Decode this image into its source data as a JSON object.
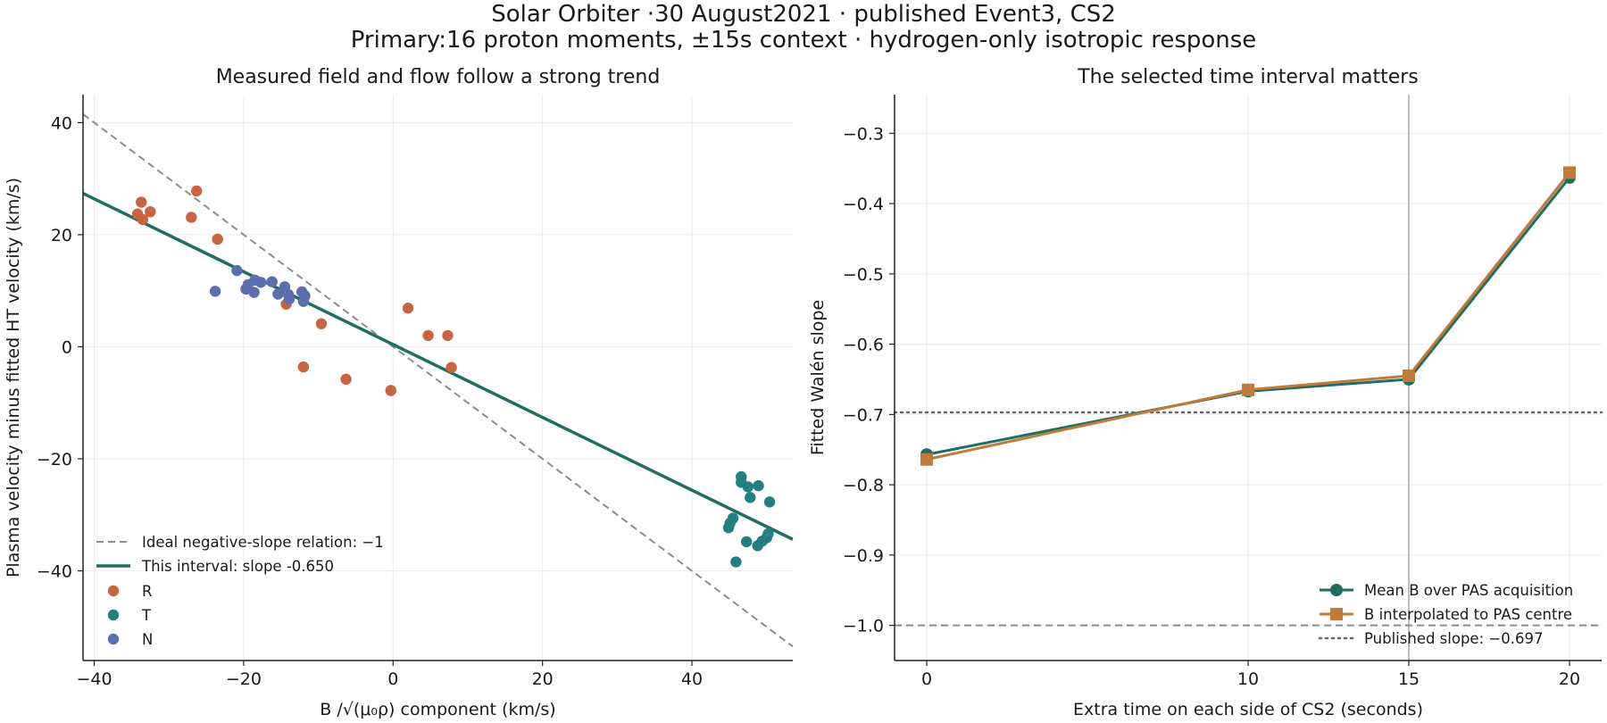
{
  "figure": {
    "title_line1": "Solar Orbiter ·30 August2021 · published Event3, CS2",
    "title_line2": "Primary:16 proton moments, ±15s context · hydrogen-only isotropic response"
  },
  "colors": {
    "R": "#c8643f",
    "T": "#237f80",
    "N": "#5b6eae",
    "fit_line": "#1f6e61",
    "ideal_line": "#8c8c8c",
    "mean_b": "#1f6e61",
    "interp_b": "#c07a3a",
    "published": "#666666",
    "grid": "#ebebeb"
  },
  "chart_data": [
    {
      "type": "scatter",
      "title": "Measured field and flow follow a strong trend",
      "xlabel": "B /√(μ₀ρ) component (km/s)",
      "ylabel": "Plasma velocity minus fitted HT velocity (km/s)",
      "xlim": [
        -41.5,
        53.5
      ],
      "ylim": [
        -56,
        45
      ],
      "xticks": [
        -40,
        -20,
        0,
        20,
        40
      ],
      "yticks": [
        -40,
        -20,
        0,
        20,
        40
      ],
      "grid": true,
      "legend_position": "lower-left",
      "lines": [
        {
          "name": "Ideal negative-slope relation: −1",
          "slope": -1,
          "intercept": 0,
          "style": "dashed",
          "color_key": "ideal_line"
        },
        {
          "name": "This interval: slope -0.650",
          "slope": -0.65,
          "intercept": 0.4,
          "style": "solid",
          "color_key": "fit_line"
        }
      ],
      "series": [
        {
          "name": "R",
          "color_key": "R",
          "points": [
            [
              -34.2,
              23.7
            ],
            [
              -33.7,
              25.8
            ],
            [
              -33.5,
              22.7
            ],
            [
              -32.5,
              24.1
            ],
            [
              -26.3,
              27.8
            ],
            [
              -27.0,
              23.1
            ],
            [
              -23.5,
              19.2
            ],
            [
              -14.3,
              7.6
            ],
            [
              -9.6,
              4.1
            ],
            [
              -12.0,
              -3.6
            ],
            [
              -6.3,
              -5.8
            ],
            [
              -0.3,
              -7.8
            ],
            [
              2.0,
              6.9
            ],
            [
              4.7,
              2.0
            ],
            [
              7.3,
              2.0
            ],
            [
              7.8,
              -3.7
            ]
          ]
        },
        {
          "name": "T",
          "color_key": "T",
          "points": [
            [
              46.6,
              -23.2
            ],
            [
              46.6,
              -24.2
            ],
            [
              47.5,
              -25.0
            ],
            [
              48.9,
              -24.8
            ],
            [
              47.8,
              -26.9
            ],
            [
              50.4,
              -27.7
            ],
            [
              45.5,
              -30.6
            ],
            [
              45.1,
              -31.5
            ],
            [
              44.9,
              -32.3
            ],
            [
              50.2,
              -33.4
            ],
            [
              50.0,
              -34.1
            ],
            [
              49.4,
              -34.7
            ],
            [
              47.3,
              -34.8
            ],
            [
              48.8,
              -35.5
            ],
            [
              45.9,
              -38.4
            ]
          ]
        },
        {
          "name": "N",
          "color_key": "N",
          "points": [
            [
              -20.9,
              13.6
            ],
            [
              -19.4,
              11.1
            ],
            [
              -18.5,
              11.9
            ],
            [
              -17.7,
              11.5
            ],
            [
              -16.2,
              11.6
            ],
            [
              -14.5,
              10.7
            ],
            [
              -12.2,
              9.8
            ],
            [
              -19.7,
              10.3
            ],
            [
              -18.6,
              9.7
            ],
            [
              -15.4,
              9.4
            ],
            [
              -14.0,
              9.3
            ],
            [
              -11.8,
              9.1
            ],
            [
              -13.9,
              8.5
            ],
            [
              -12.0,
              8.1
            ],
            [
              -23.8,
              9.9
            ]
          ]
        }
      ]
    },
    {
      "type": "line",
      "title": "The selected time interval matters",
      "xlabel": "Extra time on each side of CS2 (seconds)",
      "ylabel": "Fitted Walén slope",
      "xlim": [
        -1.0,
        21.0
      ],
      "ylim": [
        -1.05,
        -0.245
      ],
      "xticks": [
        0,
        10,
        15,
        20
      ],
      "yticks": [
        -1.0,
        -0.9,
        -0.8,
        -0.7,
        -0.6,
        -0.5,
        -0.4,
        -0.3
      ],
      "grid": true,
      "legend_position": "lower-right",
      "vline_x": 15,
      "reference_lines": [
        {
          "name": "Published slope: −0.697",
          "y": -0.697,
          "style": "dotted",
          "color_key": "published"
        },
        {
          "name": "",
          "y": -1.0,
          "style": "dashed",
          "color_key": "ideal_line"
        }
      ],
      "x": [
        0,
        10,
        15,
        20
      ],
      "series": [
        {
          "name": "Mean B over PAS acquisition",
          "marker": "circle",
          "color_key": "mean_b",
          "values": [
            -0.757,
            -0.667,
            -0.65,
            -0.363
          ]
        },
        {
          "name": "B interpolated to PAS centre",
          "marker": "square",
          "color_key": "interp_b",
          "values": [
            -0.764,
            -0.665,
            -0.645,
            -0.356
          ]
        }
      ]
    }
  ]
}
